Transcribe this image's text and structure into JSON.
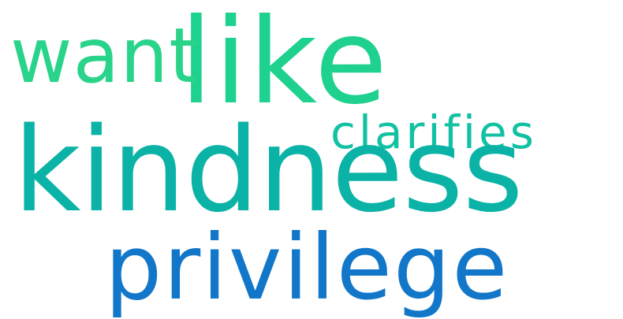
{
  "words": [
    {
      "id": "like",
      "text": "like",
      "color": "#1fd18f"
    },
    {
      "id": "want",
      "text": "want",
      "color": "#29d38a"
    },
    {
      "id": "clarifies",
      "text": "clarifies",
      "color": "#12c1a2"
    },
    {
      "id": "kindness",
      "text": "kindness",
      "color": "#0bb3a7"
    },
    {
      "id": "privilege",
      "text": "privilege",
      "color": "#1277c9"
    }
  ]
}
